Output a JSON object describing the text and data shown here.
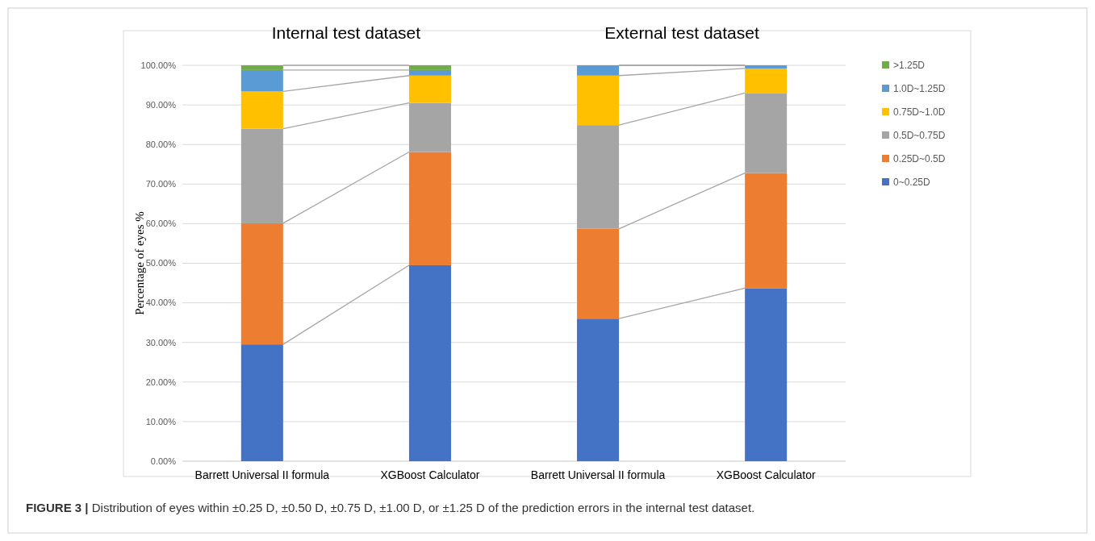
{
  "chart_data": {
    "type": "bar",
    "stacked": true,
    "ylabel": "Percentage of eyes %",
    "categories": [
      "Barrett Universal II formula",
      "XGBoost Calculator",
      "Barrett Universal II formula",
      "XGBoost Calculator"
    ],
    "series": [
      {
        "name": "0~0.25D",
        "color": "#4472c4",
        "values": [
          29.5,
          49.5,
          36.0,
          43.7
        ]
      },
      {
        "name": "0.25D~0.5D",
        "color": "#ed7d31",
        "values": [
          30.6,
          28.6,
          22.7,
          29.1
        ]
      },
      {
        "name": "0.5D~0.75D",
        "color": "#a5a5a5",
        "values": [
          23.9,
          12.4,
          26.2,
          20.2
        ]
      },
      {
        "name": "0.75D~1.0D",
        "color": "#ffc000",
        "values": [
          9.4,
          6.9,
          12.5,
          6.2
        ]
      },
      {
        "name": "1.0D~1.25D",
        "color": "#5b9bd5",
        "values": [
          5.4,
          1.4,
          2.6,
          0.8
        ]
      },
      {
        "name": ">1.25D",
        "color": "#70ad47",
        "values": [
          1.2,
          1.2,
          0,
          0
        ]
      }
    ],
    "ylim": [
      0,
      100
    ],
    "yticks": [
      {
        "value": 0,
        "label": "0.00%"
      },
      {
        "value": 10,
        "label": "10.00%"
      },
      {
        "value": 20,
        "label": "20.00%"
      },
      {
        "value": 30,
        "label": "30.00%"
      },
      {
        "value": 40,
        "label": "40.00%"
      },
      {
        "value": 50,
        "label": "50.00%"
      },
      {
        "value": 60,
        "label": "60.00%"
      },
      {
        "value": 70,
        "label": "70.00%"
      },
      {
        "value": 80,
        "label": "80.00%"
      },
      {
        "value": 90,
        "label": "90.00%"
      },
      {
        "value": 100,
        "label": "100.00%"
      }
    ],
    "grid": "y",
    "legend": "right",
    "annotations": [
      "Internal test dataset",
      "External test dataset",
      "FIGURE 3 | Distribution of eyes within ±0.25 D, ±0.50 D, ±0.75 D, ±1.00 D, or ±1.25 D of the prediction errors in the internal test dataset."
    ]
  }
}
